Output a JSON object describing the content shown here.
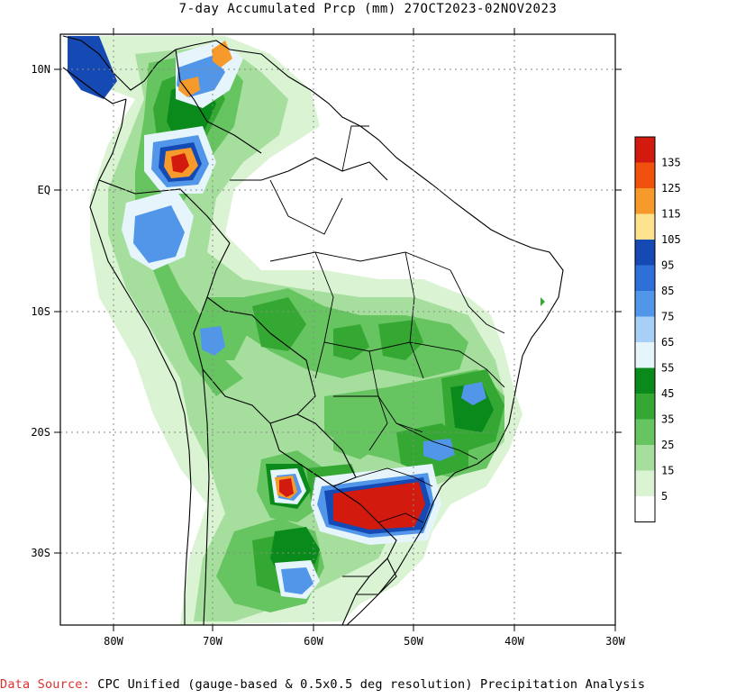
{
  "title": "7-day Accumulated Prcp (mm) 27OCT2023-02NOV2023",
  "lat_labels": [
    "10N",
    "EQ",
    "10S",
    "20S",
    "30S"
  ],
  "lon_labels": [
    "80W",
    "70W",
    "60W",
    "50W",
    "40W",
    "30W"
  ],
  "legend": {
    "labels": [
      "135",
      "125",
      "115",
      "105",
      "95",
      "85",
      "75",
      "65",
      "55",
      "45",
      "35",
      "25",
      "15",
      "5"
    ],
    "colors": [
      "#d21a0e",
      "#f0520e",
      "#f69a2c",
      "#fde38d",
      "#1549b4",
      "#2f6fd8",
      "#5296ea",
      "#a8cff6",
      "#e6f5fb",
      "#0b8a1c",
      "#34a832",
      "#67c561",
      "#a6de9e",
      "#d9f3d3",
      "#ffffff"
    ]
  },
  "source": {
    "prefix": "Data Source:",
    "text": "CPC Unified (gauge-based & 0.5x0.5 deg resolution) Precipitation Analysis"
  }
}
